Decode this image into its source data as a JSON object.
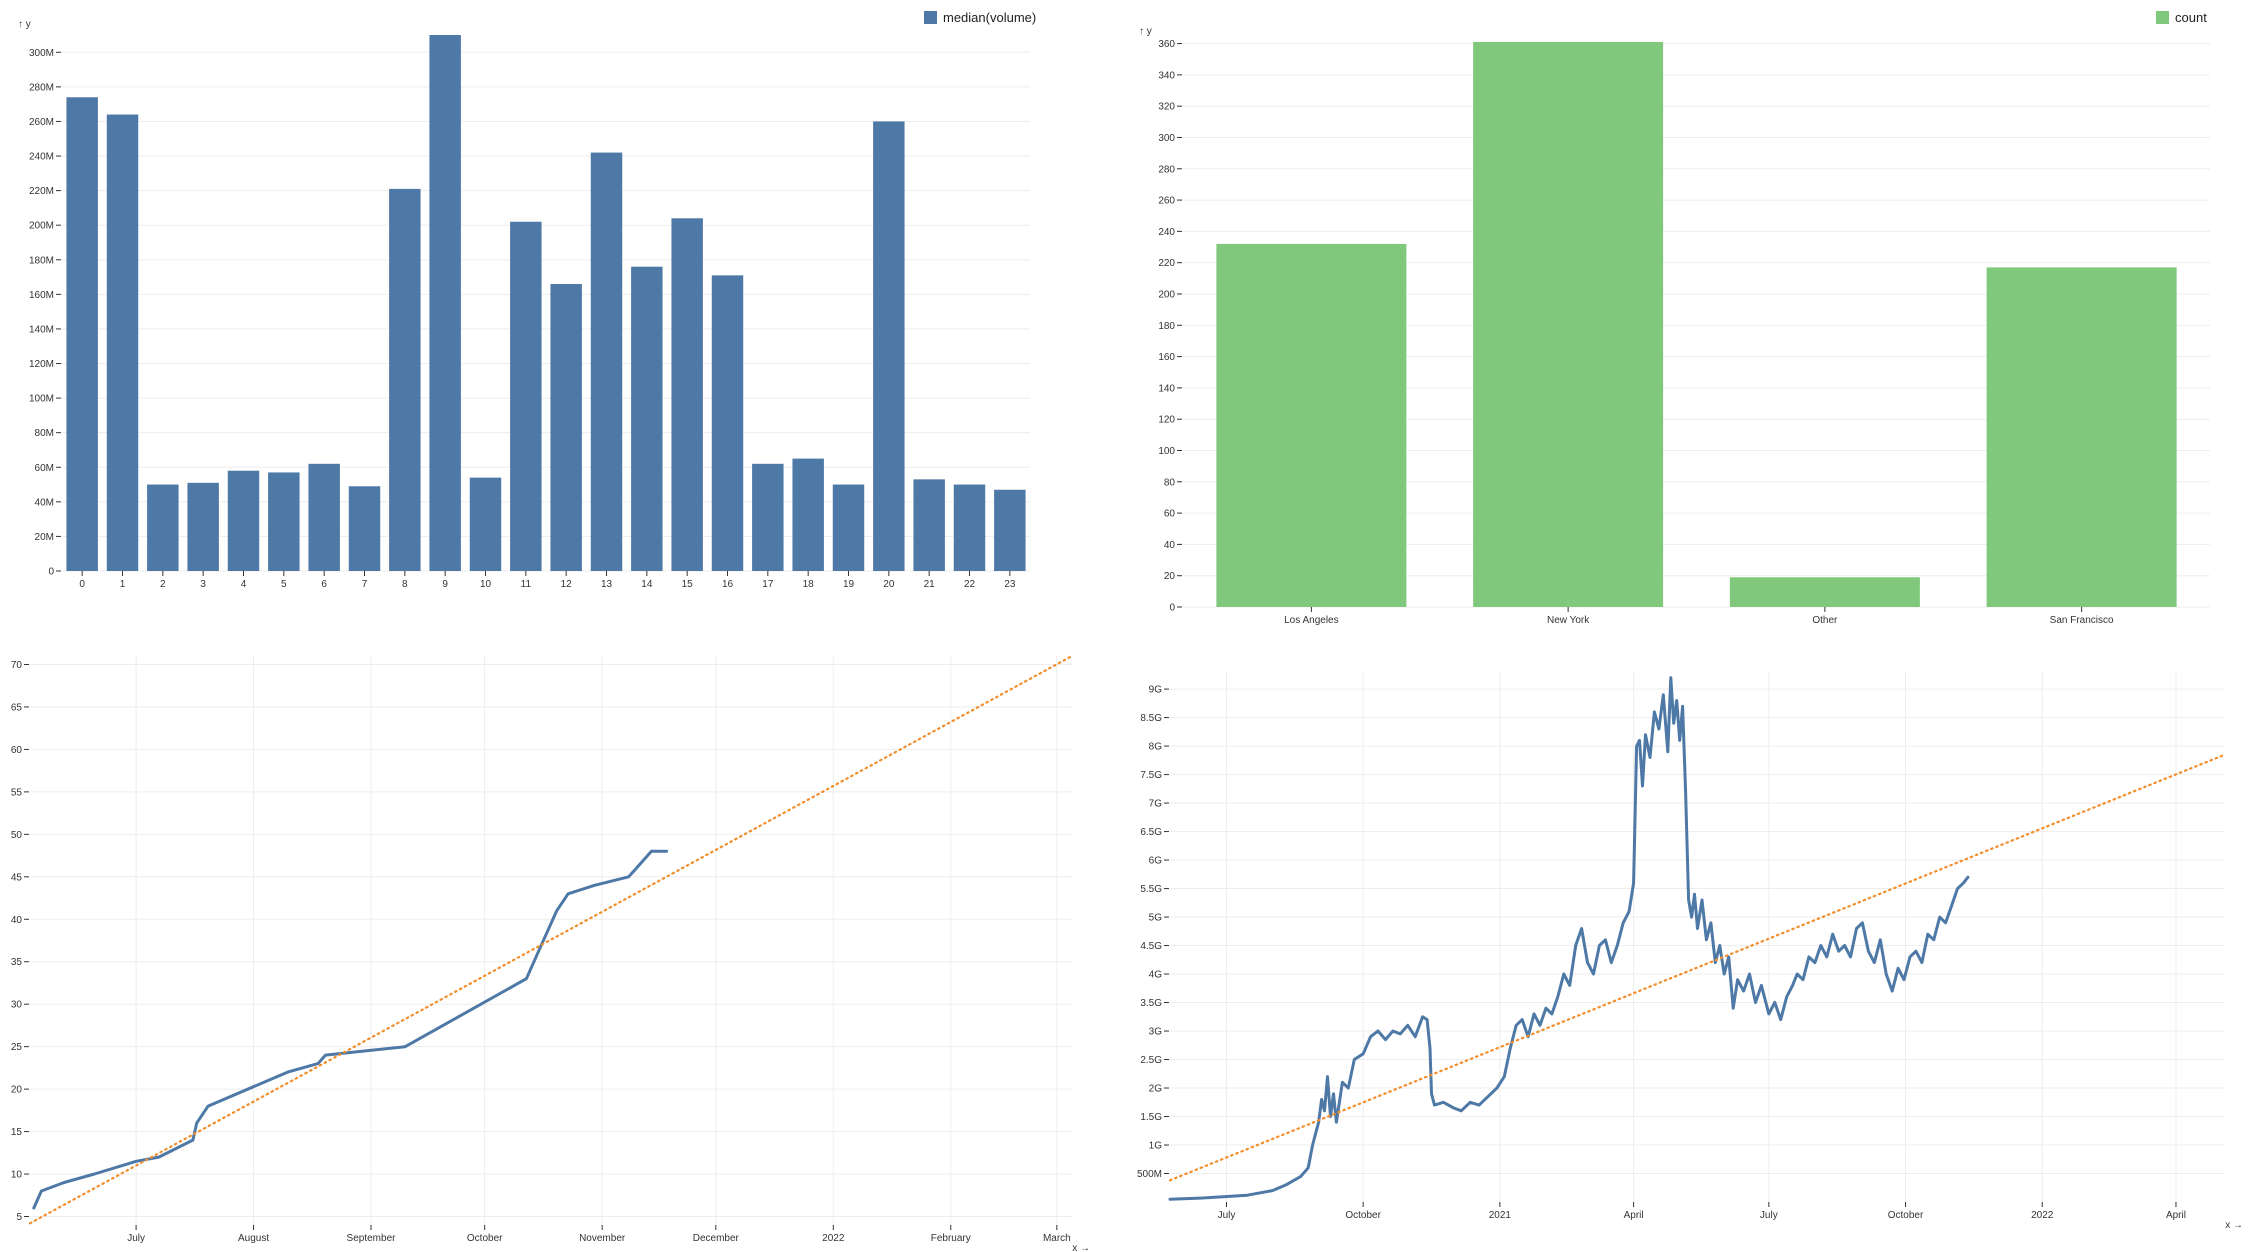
{
  "chart_data": [
    {
      "type": "bar",
      "categories": [
        "0",
        "1",
        "2",
        "3",
        "4",
        "5",
        "6",
        "7",
        "8",
        "9",
        "10",
        "11",
        "12",
        "13",
        "14",
        "15",
        "16",
        "17",
        "18",
        "19",
        "20",
        "21",
        "22",
        "23"
      ],
      "series": [
        {
          "name": "median(volume)",
          "values": [
            274000000,
            264000000,
            50000000,
            51000000,
            58000000,
            57000000,
            62000000,
            49000000,
            221000000,
            310000000,
            54000000,
            202000000,
            166000000,
            242000000,
            176000000,
            204000000,
            171000000,
            62000000,
            65000000,
            50000000,
            260000000,
            53000000,
            50000000,
            47000000
          ]
        }
      ],
      "ylabel": "↑ y",
      "ylim": [
        0,
        310000000
      ],
      "yticks": [
        0,
        20000000,
        40000000,
        60000000,
        80000000,
        100000000,
        120000000,
        140000000,
        160000000,
        180000000,
        200000000,
        220000000,
        240000000,
        260000000,
        280000000,
        300000000
      ],
      "ytick_labels": [
        "0",
        "20M",
        "40M",
        "60M",
        "80M",
        "100M",
        "120M",
        "140M",
        "160M",
        "180M",
        "200M",
        "220M",
        "240M",
        "260M",
        "280M",
        "300M"
      ],
      "color": "#4e79a7",
      "grid": true,
      "legend_position": "top-right"
    },
    {
      "type": "bar",
      "categories": [
        "Los Angeles",
        "New York",
        "Other",
        "San Francisco"
      ],
      "series": [
        {
          "name": "count",
          "values": [
            232,
            361,
            19,
            217
          ]
        }
      ],
      "ylabel": "↑ y",
      "ylim": [
        0,
        361
      ],
      "yticks": [
        0,
        20,
        40,
        60,
        80,
        100,
        120,
        140,
        160,
        180,
        200,
        220,
        240,
        260,
        280,
        300,
        320,
        340,
        360
      ],
      "ytick_labels": [
        "0",
        "20",
        "40",
        "60",
        "80",
        "100",
        "120",
        "140",
        "160",
        "180",
        "200",
        "220",
        "240",
        "260",
        "280",
        "300",
        "320",
        "340",
        "360"
      ],
      "color": "#80c97c",
      "grid": true,
      "legend_position": "top-right"
    },
    {
      "type": "line",
      "xlabel": "x →",
      "xlim": [
        "2021-06-03",
        "2022-03-05"
      ],
      "ylim": [
        4,
        71
      ],
      "xticks": [
        "2021-07-01",
        "2021-08-01",
        "2021-09-01",
        "2021-10-01",
        "2021-11-01",
        "2021-12-01",
        "2022-01-01",
        "2022-02-01",
        "2022-03-01"
      ],
      "xtick_labels": [
        "July",
        "August",
        "September",
        "October",
        "November",
        "December",
        "2022",
        "February",
        "March"
      ],
      "yticks": [
        5,
        10,
        15,
        20,
        25,
        30,
        35,
        40,
        45,
        50,
        55,
        60,
        65,
        70
      ],
      "ytick_labels": [
        "5",
        "10",
        "15",
        "20",
        "25",
        "30",
        "35",
        "40",
        "45",
        "50",
        "55",
        "60",
        "65",
        "70"
      ],
      "series": [
        {
          "color": "#4e79a7",
          "style": "solid",
          "x": [
            "2021-06-04",
            "2021-06-06",
            "2021-06-12",
            "2021-06-20",
            "2021-07-01",
            "2021-07-07",
            "2021-07-16",
            "2021-07-17",
            "2021-07-20",
            "2021-08-10",
            "2021-08-18",
            "2021-08-20",
            "2021-09-10",
            "2021-10-12",
            "2021-10-16",
            "2021-10-20",
            "2021-10-23",
            "2021-10-30",
            "2021-11-08",
            "2021-11-14",
            "2021-11-18"
          ],
          "y": [
            6,
            8,
            9,
            10,
            11.5,
            12,
            14,
            16,
            18,
            22,
            23,
            24,
            25,
            33,
            37,
            41,
            43,
            44,
            45,
            48,
            48
          ]
        },
        {
          "color": "#f28e2b",
          "style": "dotted",
          "x": [
            "2021-06-03",
            "2022-03-05"
          ],
          "y": [
            4.2,
            71
          ]
        }
      ],
      "grid": true
    },
    {
      "type": "line",
      "xlabel": "x →",
      "xlim": [
        "2020-05-24",
        "2022-05-04"
      ],
      "ylim": [
        0,
        9300000000
      ],
      "xticks": [
        "2020-07-01",
        "2020-10-01",
        "2021-01-01",
        "2021-04-01",
        "2021-07-01",
        "2021-10-01",
        "2022-01-01",
        "2022-04-01"
      ],
      "xtick_labels": [
        "July",
        "October",
        "2021",
        "April",
        "July",
        "October",
        "2022",
        "April"
      ],
      "yticks": [
        500000000,
        1000000000,
        1500000000,
        2000000000,
        2500000000,
        3000000000,
        3500000000,
        4000000000,
        4500000000,
        5000000000,
        5500000000,
        6000000000,
        6500000000,
        7000000000,
        7500000000,
        8000000000,
        8500000000,
        9000000000
      ],
      "ytick_labels": [
        "500M",
        "1G",
        "1.5G",
        "2G",
        "2.5G",
        "3G",
        "3.5G",
        "4G",
        "4.5G",
        "5G",
        "5.5G",
        "6G",
        "6.5G",
        "7G",
        "7.5G",
        "8G",
        "8.5G",
        "9G"
      ],
      "series": [
        {
          "color": "#4e79a7",
          "style": "solid",
          "x": [
            "2020-05-24",
            "2020-06-15",
            "2020-07-15",
            "2020-08-01",
            "2020-08-10",
            "2020-08-20",
            "2020-08-25",
            "2020-08-28",
            "2020-09-01",
            "2020-09-03",
            "2020-09-05",
            "2020-09-07",
            "2020-09-09",
            "2020-09-11",
            "2020-09-13",
            "2020-09-17",
            "2020-09-21",
            "2020-09-25",
            "2020-10-01",
            "2020-10-06",
            "2020-10-11",
            "2020-10-16",
            "2020-10-21",
            "2020-10-26",
            "2020-10-31",
            "2020-11-05",
            "2020-11-10",
            "2020-11-13",
            "2020-11-15",
            "2020-11-16",
            "2020-11-18",
            "2020-11-24",
            "2020-12-01",
            "2020-12-06",
            "2020-12-12",
            "2020-12-18",
            "2020-12-24",
            "2020-12-30",
            "2021-01-04",
            "2021-01-08",
            "2021-01-12",
            "2021-01-16",
            "2021-01-20",
            "2021-01-24",
            "2021-01-28",
            "2021-02-01",
            "2021-02-05",
            "2021-02-09",
            "2021-02-13",
            "2021-02-17",
            "2021-02-21",
            "2021-02-25",
            "2021-03-01",
            "2021-03-05",
            "2021-03-09",
            "2021-03-13",
            "2021-03-17",
            "2021-03-21",
            "2021-03-25",
            "2021-03-29",
            "2021-04-01",
            "2021-04-03",
            "2021-04-05",
            "2021-04-07",
            "2021-04-09",
            "2021-04-12",
            "2021-04-15",
            "2021-04-18",
            "2021-04-21",
            "2021-04-24",
            "2021-04-26",
            "2021-04-28",
            "2021-04-30",
            "2021-05-02",
            "2021-05-04",
            "2021-05-06",
            "2021-05-08",
            "2021-05-10",
            "2021-05-12",
            "2021-05-14",
            "2021-05-17",
            "2021-05-20",
            "2021-05-23",
            "2021-05-26",
            "2021-05-29",
            "2021-06-01",
            "2021-06-04",
            "2021-06-07",
            "2021-06-10",
            "2021-06-14",
            "2021-06-18",
            "2021-06-22",
            "2021-06-26",
            "2021-07-01",
            "2021-07-05",
            "2021-07-09",
            "2021-07-13",
            "2021-07-17",
            "2021-07-20",
            "2021-07-24",
            "2021-07-28",
            "2021-08-01",
            "2021-08-05",
            "2021-08-09",
            "2021-08-13",
            "2021-08-17",
            "2021-08-21",
            "2021-08-25",
            "2021-08-29",
            "2021-09-02",
            "2021-09-06",
            "2021-09-10",
            "2021-09-14",
            "2021-09-18",
            "2021-09-22",
            "2021-09-26",
            "2021-09-30",
            "2021-10-04",
            "2021-10-08",
            "2021-10-12",
            "2021-10-16",
            "2021-10-20",
            "2021-10-24",
            "2021-10-28",
            "2021-11-01",
            "2021-11-05",
            "2021-11-09",
            "2021-11-12"
          ],
          "y": [
            50000000,
            70000000,
            120000000,
            200000000,
            300000000,
            450000000,
            600000000,
            1000000000,
            1400000000,
            1800000000,
            1600000000,
            2200000000,
            1500000000,
            1900000000,
            1400000000,
            2100000000,
            2000000000,
            2500000000,
            2600000000,
            2900000000,
            3000000000,
            2850000000,
            3000000000,
            2950000000,
            3100000000,
            2900000000,
            3250000000,
            3200000000,
            2700000000,
            1900000000,
            1700000000,
            1750000000,
            1650000000,
            1600000000,
            1750000000,
            1700000000,
            1850000000,
            2000000000,
            2200000000,
            2700000000,
            3100000000,
            3200000000,
            2900000000,
            3300000000,
            3100000000,
            3400000000,
            3300000000,
            3600000000,
            4000000000,
            3800000000,
            4500000000,
            4800000000,
            4200000000,
            4000000000,
            4500000000,
            4600000000,
            4200000000,
            4500000000,
            4900000000,
            5100000000,
            5600000000,
            8000000000,
            8100000000,
            7300000000,
            8200000000,
            7800000000,
            8600000000,
            8300000000,
            8900000000,
            7900000000,
            9200000000,
            8400000000,
            8800000000,
            8100000000,
            8700000000,
            7200000000,
            5300000000,
            5000000000,
            5400000000,
            4800000000,
            5300000000,
            4600000000,
            4900000000,
            4200000000,
            4500000000,
            4000000000,
            4300000000,
            3400000000,
            3900000000,
            3700000000,
            4000000000,
            3500000000,
            3800000000,
            3300000000,
            3500000000,
            3200000000,
            3600000000,
            3800000000,
            4000000000,
            3900000000,
            4300000000,
            4200000000,
            4500000000,
            4300000000,
            4700000000,
            4400000000,
            4500000000,
            4300000000,
            4800000000,
            4900000000,
            4400000000,
            4200000000,
            4600000000,
            4000000000,
            3700000000,
            4100000000,
            3900000000,
            4300000000,
            4400000000,
            4200000000,
            4700000000,
            4600000000,
            5000000000,
            4900000000,
            5200000000,
            5500000000,
            5600000000,
            5700000000
          ]
        },
        {
          "color": "#f28e2b",
          "style": "dotted",
          "x": [
            "2020-05-24",
            "2022-05-04"
          ],
          "y": [
            380000000,
            7850000000
          ]
        }
      ],
      "grid": true
    }
  ]
}
